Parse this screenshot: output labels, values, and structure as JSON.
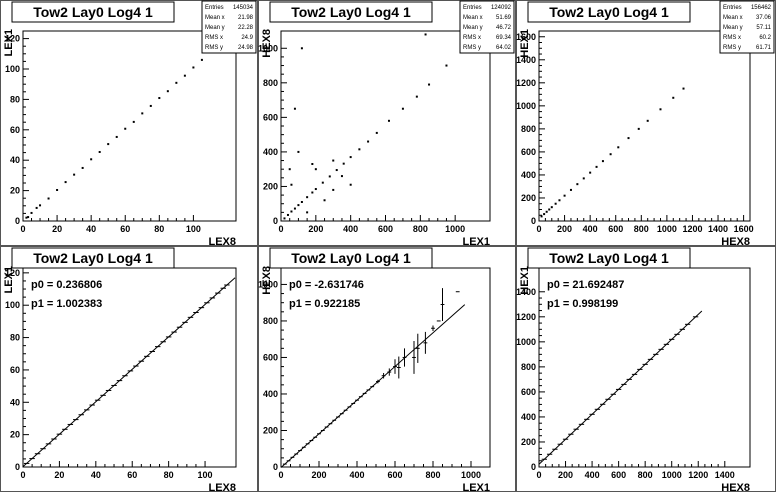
{
  "chart_data": [
    {
      "type": "scatter",
      "title": "Tow2 Lay0 Log4 1",
      "xlabel": "LEX8",
      "ylabel": "LEX1",
      "xlim": [
        0,
        125
      ],
      "ylim": [
        0,
        125
      ],
      "xticks": [
        0,
        20,
        40,
        60,
        80,
        100
      ],
      "yticks": [
        0,
        20,
        40,
        60,
        80,
        100,
        120
      ],
      "stats": [
        [
          "Entries",
          "145034"
        ],
        [
          "Mean x",
          "21.98"
        ],
        [
          "Mean y",
          "22.28"
        ],
        [
          "RMS x",
          "24.9"
        ],
        [
          "RMS y",
          "24.98"
        ]
      ],
      "points": [
        [
          2,
          2.2
        ],
        [
          5,
          5.3
        ],
        [
          10,
          10.3
        ],
        [
          20,
          20.4
        ],
        [
          30,
          30.5
        ],
        [
          40,
          40.6
        ],
        [
          50,
          50.6
        ],
        [
          60,
          60.7
        ],
        [
          70,
          70.8
        ],
        [
          80,
          80.9
        ],
        [
          90,
          90.9
        ],
        [
          100,
          101
        ],
        [
          105,
          106
        ],
        [
          110,
          111
        ],
        [
          3,
          2.6
        ],
        [
          8,
          8.6
        ],
        [
          15,
          14.8
        ],
        [
          25,
          25.6
        ],
        [
          35,
          34.9
        ],
        [
          45,
          45.4
        ],
        [
          55,
          55.3
        ],
        [
          65,
          65.2
        ],
        [
          75,
          75.7
        ],
        [
          85,
          85.4
        ],
        [
          95,
          95.6
        ]
      ],
      "grid": false,
      "legend": "none"
    },
    {
      "type": "scatter",
      "title": "Tow2 Lay0 Log4 1",
      "xlabel": "LEX1",
      "ylabel": "HEX8",
      "xlim": [
        0,
        1200
      ],
      "ylim": [
        0,
        1100
      ],
      "xticks": [
        0,
        200,
        400,
        600,
        800,
        1000
      ],
      "yticks": [
        0,
        200,
        400,
        600,
        800,
        1000
      ],
      "stats": [
        [
          "Entries",
          "124092"
        ],
        [
          "Mean x",
          "51.69"
        ],
        [
          "Mean y",
          "46.72"
        ],
        [
          "RMS x",
          "69.34"
        ],
        [
          "RMS y",
          "64.02"
        ]
      ],
      "points": [
        [
          20,
          15
        ],
        [
          40,
          35
        ],
        [
          60,
          55
        ],
        [
          80,
          72
        ],
        [
          100,
          92
        ],
        [
          120,
          110
        ],
        [
          150,
          138
        ],
        [
          180,
          165
        ],
        [
          200,
          185
        ],
        [
          240,
          222
        ],
        [
          280,
          258
        ],
        [
          320,
          295
        ],
        [
          360,
          332
        ],
        [
          400,
          370
        ],
        [
          450,
          415
        ],
        [
          500,
          460
        ],
        [
          550,
          510
        ],
        [
          620,
          580
        ],
        [
          700,
          650
        ],
        [
          780,
          720
        ],
        [
          850,
          790
        ],
        [
          950,
          900
        ],
        [
          100,
          400
        ],
        [
          200,
          300
        ],
        [
          150,
          50
        ],
        [
          300,
          180
        ],
        [
          50,
          300
        ],
        [
          80,
          650
        ],
        [
          120,
          1000
        ],
        [
          830,
          1080
        ],
        [
          400,
          210
        ],
        [
          250,
          120
        ],
        [
          60,
          210
        ],
        [
          180,
          330
        ],
        [
          300,
          350
        ],
        [
          350,
          260
        ]
      ],
      "grid": false,
      "legend": "none"
    },
    {
      "type": "scatter",
      "title": "Tow2 Lay0 Log4 1",
      "xlabel": "HEX8",
      "ylabel": "HEX1",
      "xlim": [
        0,
        1650
      ],
      "ylim": [
        0,
        1650
      ],
      "xticks": [
        0,
        200,
        400,
        600,
        800,
        1000,
        1200,
        1400,
        1600
      ],
      "yticks": [
        0,
        200,
        400,
        600,
        800,
        1000,
        1200,
        1400,
        1600
      ],
      "stats": [
        [
          "Entries",
          "156462"
        ],
        [
          "Mean x",
          "37.06"
        ],
        [
          "Mean y",
          "57.11"
        ],
        [
          "RMS x",
          "60.2"
        ],
        [
          "RMS y",
          "61.71"
        ]
      ],
      "points": [
        [
          20,
          40
        ],
        [
          40,
          60
        ],
        [
          60,
          80
        ],
        [
          80,
          100
        ],
        [
          100,
          120
        ],
        [
          130,
          150
        ],
        [
          160,
          180
        ],
        [
          200,
          220
        ],
        [
          250,
          270
        ],
        [
          300,
          320
        ],
        [
          350,
          370
        ],
        [
          400,
          420
        ],
        [
          450,
          470
        ],
        [
          500,
          520
        ],
        [
          560,
          580
        ],
        [
          620,
          640
        ],
        [
          700,
          720
        ],
        [
          780,
          800
        ],
        [
          850,
          870
        ],
        [
          950,
          970
        ],
        [
          1050,
          1070
        ],
        [
          1130,
          1150
        ]
      ],
      "grid": false,
      "legend": "none"
    },
    {
      "type": "profile",
      "title": "Tow2 Lay0 Log4 1",
      "xlabel": "LEX8",
      "ylabel": "LEX1",
      "xlim": [
        0,
        117
      ],
      "ylim": [
        0,
        123
      ],
      "xticks": [
        0,
        20,
        40,
        60,
        80,
        100
      ],
      "yticks": [
        0,
        20,
        40,
        60,
        80,
        100,
        120
      ],
      "fit": {
        "p0_label": "p0 = 0.236806",
        "p1_label": "p1 = 1.002383",
        "p0": 0.236806,
        "p1": 1.002383
      },
      "x": [
        2,
        5,
        8,
        11,
        14,
        17,
        20,
        23,
        26,
        29,
        32,
        35,
        38,
        41,
        44,
        47,
        50,
        53,
        56,
        59,
        62,
        65,
        68,
        71,
        74,
        77,
        80,
        83,
        86,
        89,
        92,
        95,
        98,
        101,
        104,
        107,
        110,
        112
      ],
      "y": [
        2.2,
        5.2,
        8.2,
        11.3,
        14.3,
        17.3,
        20.3,
        23.3,
        26.3,
        29.3,
        32.3,
        35.3,
        38.3,
        41.3,
        44.3,
        47.3,
        50.4,
        53.4,
        56.4,
        59.4,
        62.4,
        65.4,
        68.4,
        71.4,
        74.4,
        77.4,
        80.4,
        83.4,
        86.4,
        89.4,
        92.5,
        95.5,
        98.5,
        101.5,
        104.5,
        107.5,
        110.5,
        112.5
      ],
      "grid": false,
      "legend": "none"
    },
    {
      "type": "profile",
      "title": "Tow2 Lay0 Log4 1",
      "xlabel": "LEX1",
      "ylabel": "HEX8",
      "xlim": [
        0,
        1100
      ],
      "ylim": [
        0,
        1090
      ],
      "xticks": [
        0,
        200,
        400,
        600,
        800,
        1000
      ],
      "yticks": [
        0,
        200,
        400,
        600,
        800,
        1000
      ],
      "fit": {
        "p0_label": "p0 = -2.631746",
        "p1_label": "p1 = 0.922185",
        "p0": -2.631746,
        "p1": 0.922185
      },
      "x": [
        20,
        40,
        60,
        80,
        100,
        120,
        140,
        160,
        180,
        200,
        220,
        240,
        260,
        280,
        300,
        320,
        340,
        360,
        380,
        400,
        420,
        440,
        460,
        480,
        510,
        540,
        570,
        600,
        620,
        650,
        700,
        720,
        760,
        800,
        830,
        850,
        930
      ],
      "y": [
        16,
        34,
        53,
        71,
        90,
        108,
        127,
        145,
        163,
        182,
        200,
        219,
        237,
        256,
        274,
        292,
        311,
        329,
        348,
        366,
        385,
        403,
        422,
        440,
        468,
        500,
        520,
        550,
        545,
        600,
        600,
        650,
        680,
        760,
        800,
        890,
        960
      ],
      "yerr": [
        0,
        0,
        0,
        0,
        0,
        0,
        0,
        0,
        0,
        0,
        0,
        0,
        0,
        0,
        0,
        0,
        0,
        0,
        0,
        0,
        0,
        0,
        0,
        0,
        10,
        15,
        20,
        40,
        60,
        50,
        90,
        80,
        60,
        15,
        0,
        90,
        0
      ],
      "grid": false,
      "legend": "none"
    },
    {
      "type": "profile",
      "title": "Tow2 Lay0 Log4 1",
      "xlabel": "HEX8",
      "ylabel": "HEX1",
      "xlim": [
        0,
        1590
      ],
      "ylim": [
        0,
        1590
      ],
      "xticks": [
        0,
        200,
        400,
        600,
        800,
        1000,
        1200,
        1400
      ],
      "yticks": [
        0,
        200,
        400,
        600,
        800,
        1000,
        1200,
        1400
      ],
      "fit": {
        "p0_label": "p0 = 21.692487",
        "p1_label": "p1 = 0.998199",
        "p0": 21.692487,
        "p1": 0.998199
      },
      "x": [
        40,
        80,
        120,
        160,
        200,
        240,
        280,
        320,
        360,
        400,
        440,
        480,
        520,
        560,
        600,
        640,
        680,
        720,
        760,
        800,
        840,
        880,
        920,
        960,
        1000,
        1040,
        1080,
        1120,
        1180
      ],
      "y": [
        62,
        102,
        142,
        182,
        222,
        262,
        302,
        341,
        381,
        421,
        461,
        501,
        541,
        581,
        620,
        660,
        700,
        740,
        780,
        820,
        860,
        900,
        940,
        980,
        1020,
        1060,
        1100,
        1140,
        1200
      ],
      "grid": false,
      "legend": "none"
    }
  ]
}
